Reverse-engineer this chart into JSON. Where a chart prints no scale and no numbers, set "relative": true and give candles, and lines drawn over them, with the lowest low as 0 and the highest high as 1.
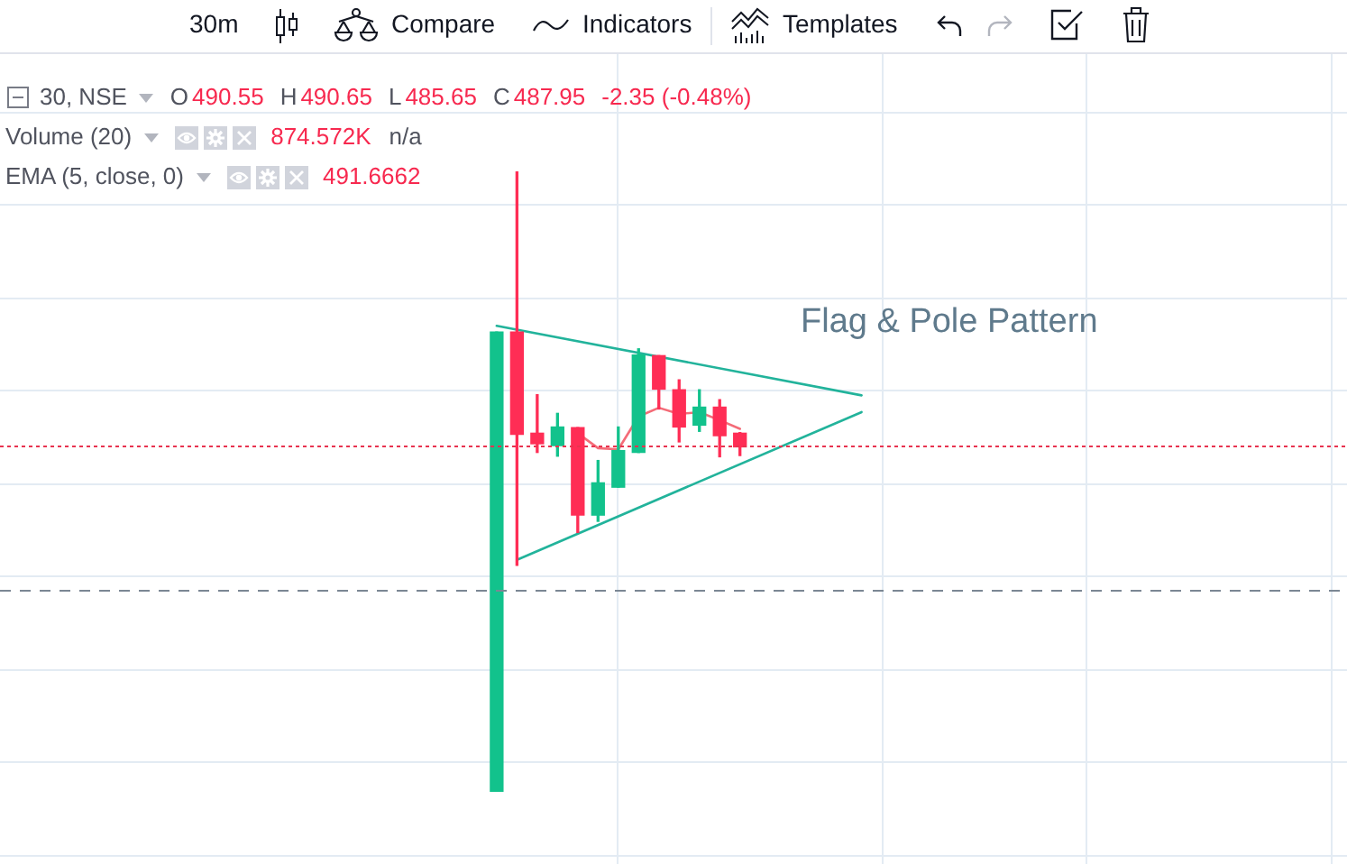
{
  "chart_data": {
    "type": "candlestick",
    "title": "30, NSE",
    "relative": true,
    "grid": true,
    "tick_labels": false,
    "categories": [
      null,
      null,
      null,
      null,
      null,
      null,
      null,
      null,
      null,
      null,
      null,
      null,
      null,
      null,
      null,
      null,
      null,
      null,
      null,
      null,
      null,
      null,
      null,
      null,
      null,
      null,
      null,
      null,
      null,
      null,
      null,
      null,
      null,
      null,
      null,
      null,
      null,
      null,
      null,
      null,
      null,
      null,
      null,
      null,
      null,
      null,
      null,
      null,
      null,
      null,
      null,
      null,
      null,
      null,
      null,
      null,
      null,
      null,
      null,
      null,
      null,
      null,
      null,
      null,
      null,
      null
    ],
    "series": [
      {
        "ohlc": [
          null,
          null,
          null,
          null,
          null,
          null,
          null,
          null,
          null,
          null,
          null,
          null,
          null,
          null,
          null,
          null,
          null,
          null,
          null,
          null,
          null,
          null,
          null,
          null,
          [
            0,
            0.741,
            0,
            0.741
          ],
          [
            0.741,
            1,
            0.365,
            0.576
          ],
          [
            0.578,
            0.64,
            0.547,
            0.561
          ],
          [
            0.558,
            0.61,
            0.541,
            0.588
          ],
          [
            0.587,
            0.587,
            0.418,
            0.446
          ],
          [
            0.446,
            0.534,
            0.436,
            0.498
          ],
          [
            0.491,
            0.588,
            0.491,
            0.55
          ],
          [
            0.547,
            0.714,
            0.547,
            0.704
          ],
          [
            0.703,
            0.703,
            0.617,
            0.649
          ],
          [
            0.648,
            0.664,
            0.564,
            0.588
          ],
          [
            0.591,
            0.648,
            0.581,
            0.62
          ],
          [
            0.62,
            0.632,
            0.54,
            0.574
          ],
          [
            0.578,
            0.579,
            0.542,
            0.556
          ],
          null,
          null,
          null,
          null,
          null,
          null,
          null,
          null,
          null,
          null,
          null,
          null,
          null,
          null,
          null,
          null,
          null,
          null,
          null,
          null,
          null,
          null,
          null,
          null,
          null,
          null,
          null,
          null,
          null
        ],
        "colors": [
          null,
          null,
          null,
          null,
          null,
          null,
          null,
          null,
          null,
          null,
          null,
          null,
          null,
          null,
          null,
          null,
          null,
          null,
          null,
          null,
          null,
          null,
          null,
          null,
          "#12c28c",
          "#ff2d55",
          "#ff2d55",
          "#12c28c",
          "#ff2d55",
          "#12c28c",
          "#12c28c",
          "#12c28c",
          "#ff2d55",
          "#ff2d55",
          "#12c28c",
          "#ff2d55",
          "#ff2d55",
          null,
          null,
          null,
          null,
          null,
          null,
          null,
          null,
          null,
          null,
          null,
          null,
          null,
          null,
          null,
          null,
          null,
          null,
          null,
          null,
          null,
          null,
          null,
          null,
          null,
          null,
          null,
          null,
          null
        ]
      },
      {
        "type": "line",
        "color": "#f46c78",
        "values": [
          null,
          null,
          null,
          null,
          null,
          null,
          null,
          null,
          null,
          null,
          null,
          null,
          null,
          null,
          null,
          null,
          null,
          null,
          null,
          null,
          null,
          null,
          null,
          null,
          null,
          null,
          null,
          null,
          0.578,
          0.554,
          0.552,
          0.605,
          0.619,
          0.609,
          0.612,
          0.599,
          0.585,
          null,
          null,
          null,
          null,
          null,
          null,
          null,
          null,
          null,
          null,
          null,
          null,
          null,
          null,
          null,
          null,
          null,
          null,
          null,
          null,
          null,
          null,
          null,
          null,
          null,
          null,
          null,
          null,
          null
        ]
      },
      {
        "type": "line",
        "color": "#22b39b",
        "values": [
          null,
          null,
          null,
          null,
          null,
          null,
          null,
          null,
          null,
          null,
          null,
          null,
          null,
          null,
          null,
          null,
          null,
          null,
          null,
          null,
          null,
          null,
          null,
          null,
          0.751,
          null,
          null,
          null,
          null,
          null,
          null,
          null,
          null,
          null,
          null,
          null,
          null,
          null,
          null,
          null,
          null,
          null,
          0.639,
          null,
          null,
          null,
          null,
          null,
          null,
          null,
          null,
          null,
          null,
          null,
          null,
          null,
          null,
          null,
          null,
          null,
          null,
          null,
          null,
          null,
          null,
          null
        ]
      },
      {
        "type": "line",
        "color": "#22b39b",
        "values": [
          null,
          null,
          null,
          null,
          null,
          null,
          null,
          null,
          null,
          null,
          null,
          null,
          null,
          null,
          null,
          null,
          null,
          null,
          null,
          null,
          null,
          null,
          null,
          null,
          null,
          0.374,
          null,
          null,
          null,
          null,
          null,
          null,
          null,
          null,
          null,
          null,
          null,
          null,
          null,
          null,
          null,
          null,
          0.612,
          null,
          null,
          null,
          null,
          null,
          null,
          null,
          null,
          null,
          null,
          null,
          null,
          null,
          null,
          null,
          null,
          null,
          null,
          null,
          null,
          null,
          null,
          null
        ]
      }
    ],
    "ref_lines": [
      {
        "axis": "y",
        "value": 0.557,
        "color": "#e8334f",
        "line_style": "dotted"
      },
      {
        "axis": "y",
        "value": 0.326,
        "color": "#7b8794",
        "line_style": "dashed"
      }
    ],
    "annotations": [
      "30m",
      "Compare",
      "Indicators",
      "Templates",
      "O",
      "490.55",
      "H",
      "490.65",
      "L",
      "485.65",
      "C",
      "487.95",
      "-2.35 (-0.48%)",
      "Volume (20)",
      "874.572K",
      "n/a",
      "EMA (5, close, 0)",
      "491.6662",
      "Flag & Pole Pattern"
    ]
  }
}
